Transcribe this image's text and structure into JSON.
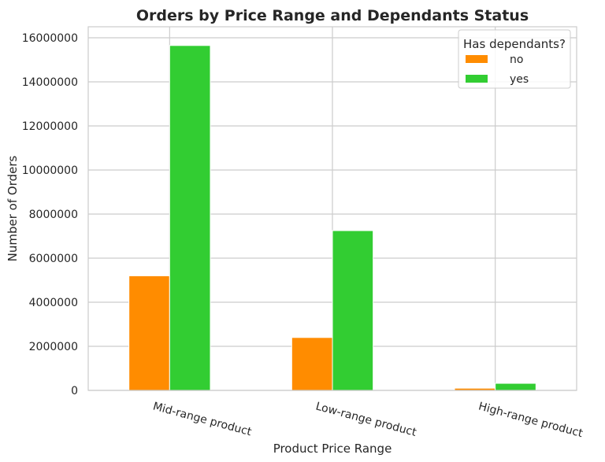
{
  "chart_data": {
    "type": "bar",
    "title": "Orders by Price Range and Dependants Status",
    "xlabel": "Product Price Range",
    "ylabel": "Number of Orders",
    "categories": [
      "Mid-range product",
      "Low-range product",
      "High-range product"
    ],
    "series": [
      {
        "name": "no",
        "values": [
          5200000,
          2400000,
          100000
        ],
        "color": "#ff8c00"
      },
      {
        "name": "yes",
        "values": [
          15650000,
          7250000,
          320000
        ],
        "color": "#32cd32"
      }
    ],
    "ylim": [
      0,
      16500000
    ],
    "yticks": [
      0,
      2000000,
      4000000,
      6000000,
      8000000,
      10000000,
      12000000,
      14000000,
      16000000
    ],
    "ytick_labels": [
      "0",
      "2000000",
      "4000000",
      "6000000",
      "8000000",
      "10000000",
      "12000000",
      "14000000",
      "16000000"
    ],
    "legend": {
      "title": "Has dependants?",
      "placement": "top-right"
    },
    "grid": true
  }
}
